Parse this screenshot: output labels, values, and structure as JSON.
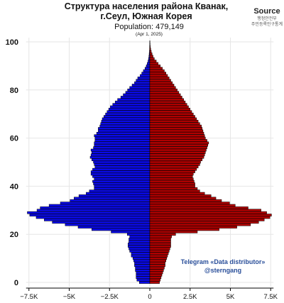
{
  "chart_data": {
    "type": "bar",
    "orientation": "horizontal-pyramid",
    "title_line1": "Структура населения района Кванак,",
    "title_line2": "г.Сеул, Южная Корея",
    "population_label": "Population: 479,149",
    "date_label": "(Apr 1, 2025)",
    "source_title": "Source",
    "source_line1": "행정안전부",
    "source_line2": "주민등록인구통계",
    "watermark_line1": "Telegram «Data distributor»",
    "watermark_line2": "@sterngang",
    "xlim": [
      -7500,
      7500
    ],
    "ylim": [
      0,
      100
    ],
    "x_ticks": [
      {
        "value": -7500,
        "label": "−7.5K"
      },
      {
        "value": -5000,
        "label": "−5K"
      },
      {
        "value": -2500,
        "label": "−2.5K"
      },
      {
        "value": 0,
        "label": "0"
      },
      {
        "value": 2500,
        "label": "2.5K"
      },
      {
        "value": 5000,
        "label": "5K"
      },
      {
        "value": 7500,
        "label": "7.5K"
      }
    ],
    "y_ticks": [
      0,
      20,
      40,
      60,
      80,
      100
    ],
    "colors": {
      "male": "#0a0ae8",
      "female": "#b00000",
      "edge": "#000000",
      "grid": "#e6e6e6"
    },
    "ages": [
      0,
      1,
      2,
      3,
      4,
      5,
      6,
      7,
      8,
      9,
      10,
      11,
      12,
      13,
      14,
      15,
      16,
      17,
      18,
      19,
      20,
      21,
      22,
      23,
      24,
      25,
      26,
      27,
      28,
      29,
      30,
      31,
      32,
      33,
      34,
      35,
      36,
      37,
      38,
      39,
      40,
      41,
      42,
      43,
      44,
      45,
      46,
      47,
      48,
      49,
      50,
      51,
      52,
      53,
      54,
      55,
      56,
      57,
      58,
      59,
      60,
      61,
      62,
      63,
      64,
      65,
      66,
      67,
      68,
      69,
      70,
      71,
      72,
      73,
      74,
      75,
      76,
      77,
      78,
      79,
      80,
      81,
      82,
      83,
      84,
      85,
      86,
      87,
      88,
      89,
      90,
      91,
      92,
      93,
      94,
      95,
      96,
      97,
      98,
      99,
      100
    ],
    "series": [
      {
        "name": "male",
        "values": [
          650,
          800,
          850,
          850,
          850,
          900,
          900,
          950,
          950,
          1000,
          1050,
          1150,
          1150,
          1250,
          1300,
          1350,
          1350,
          1300,
          1300,
          1250,
          1400,
          2400,
          3600,
          4450,
          5250,
          6050,
          6550,
          7050,
          7450,
          7600,
          7000,
          6800,
          6250,
          5550,
          4950,
          4700,
          4400,
          3950,
          3750,
          3450,
          3450,
          3500,
          3550,
          3450,
          3550,
          3650,
          3650,
          3550,
          3400,
          3450,
          3500,
          3600,
          3700,
          3650,
          3600,
          3650,
          3500,
          3450,
          3450,
          3400,
          3400,
          3450,
          3300,
          3200,
          3200,
          3100,
          3050,
          3000,
          2950,
          2850,
          2750,
          2650,
          2550,
          2450,
          2300,
          2150,
          2000,
          1800,
          1650,
          1500,
          1380,
          1250,
          1100,
          950,
          850,
          750,
          600,
          500,
          400,
          300,
          220,
          160,
          110,
          80,
          55,
          40,
          25,
          15,
          10,
          6,
          4
        ]
      },
      {
        "name": "female",
        "values": [
          600,
          650,
          700,
          750,
          800,
          850,
          900,
          950,
          950,
          1000,
          1050,
          1100,
          1150,
          1200,
          1250,
          1300,
          1300,
          1300,
          1300,
          1350,
          1600,
          2950,
          4300,
          5400,
          6250,
          6750,
          7100,
          7450,
          7550,
          7250,
          6900,
          6100,
          5300,
          4950,
          4450,
          4100,
          3800,
          3400,
          3100,
          2950,
          2800,
          2800,
          2750,
          2700,
          2650,
          2700,
          2800,
          2900,
          3000,
          3100,
          3150,
          3250,
          3350,
          3400,
          3450,
          3500,
          3550,
          3600,
          3650,
          3550,
          3450,
          3400,
          3350,
          3300,
          3250,
          3200,
          3100,
          3000,
          2900,
          2800,
          2700,
          2600,
          2500,
          2400,
          2300,
          2200,
          2100,
          2000,
          1900,
          1800,
          1700,
          1600,
          1500,
          1400,
          1300,
          1200,
          1100,
          1000,
          900,
          780,
          650,
          520,
          400,
          280,
          200,
          140,
          90,
          55,
          30,
          18,
          10
        ]
      }
    ]
  }
}
